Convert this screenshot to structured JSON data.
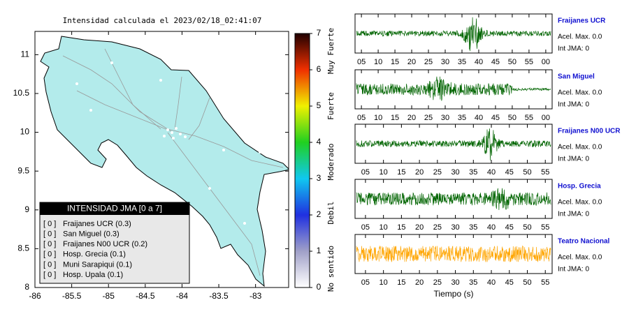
{
  "chart_data": [
    {
      "type": "map",
      "title": "Intensidad calculada el 2023/02/18_02:41:07",
      "fill": "#b3ebeb",
      "xlim": [
        -86,
        -82.55
      ],
      "ylim": [
        8,
        11.3
      ],
      "xticks": [
        -86,
        -85.5,
        -85,
        -84.5,
        -84,
        -83.5,
        -83
      ],
      "yticks": [
        8,
        8.5,
        9,
        9.5,
        10,
        10.5,
        11
      ],
      "colorbar": {
        "ylim": [
          0,
          7
        ],
        "yticks": [
          0,
          1,
          2,
          3,
          4,
          5,
          6,
          7
        ],
        "colors": [
          "#ffffff",
          "#a0a0c8",
          "#2030e0",
          "#10c8f0",
          "#20d020",
          "#f0f000",
          "#f03000",
          "#200000"
        ],
        "labels": [
          "No sentido",
          "Debil",
          "Moderado",
          "Fuerte",
          "Muy Fuerte"
        ]
      },
      "legend": {
        "title": "INTENSIDAD JMA [0 a 7]",
        "entries": [
          {
            "level": "[ 0 ]",
            "label": "Fraijanes UCR (0.3)"
          },
          {
            "level": "[ 0 ]",
            "label": "San Miguel (0.3)"
          },
          {
            "level": "[ 0 ]",
            "label": "Fraijanes N00 UCR (0.2)"
          },
          {
            "level": "[ 0 ]",
            "label": "Hosp. Grecia (0.1)"
          },
          {
            "level": "[ 0 ]",
            "label": "Muni Sarapiqui (0.1)"
          },
          {
            "level": "[ 0 ]",
            "label": "Hosp. Upala (0.1)"
          }
        ]
      }
    },
    {
      "type": "waveform",
      "station": "Fraijanes UCR",
      "acel": "Acel. Max. 0.0",
      "int": "Int JMA: 0",
      "color": "#006400",
      "xlim": [
        3.1,
        61.9
      ],
      "xticks": [
        {
          "value": 5,
          "label": "05"
        },
        10,
        15,
        20,
        25,
        30,
        35,
        40,
        45,
        50,
        55,
        {
          "value": 60,
          "label": "00"
        }
      ]
    },
    {
      "type": "waveform",
      "station": "San Miguel",
      "acel": "Acel. Max. 0.0",
      "int": "Int JMA: 0",
      "color": "#006400",
      "xlim": [
        3.1,
        61.9
      ],
      "xticks": [
        {
          "value": 5,
          "label": "05"
        },
        10,
        15,
        20,
        25,
        30,
        35,
        40,
        45,
        50,
        55,
        {
          "value": 60,
          "label": "00"
        }
      ]
    },
    {
      "type": "waveform",
      "station": "Fraijanes N00 UCR",
      "acel": "Acel. Max. 0.0",
      "int": "Int JMA: 0",
      "color": "#006400",
      "xlim": [
        2.1,
        56.9
      ],
      "xticks": [
        {
          "value": 5,
          "label": "05"
        },
        10,
        15,
        20,
        25,
        30,
        35,
        40,
        45,
        50,
        55
      ]
    },
    {
      "type": "waveform",
      "station": "Hosp. Grecia",
      "acel": "Acel. Max. 0.0",
      "int": "Int JMA: 0",
      "color": "#006400",
      "xlim": [
        2.1,
        56.9
      ],
      "xticks": [
        {
          "value": 5,
          "label": "05"
        },
        10,
        15,
        20,
        25,
        30,
        35,
        40,
        45,
        50,
        55
      ]
    },
    {
      "type": "waveform",
      "station": "Teatro Nacional",
      "acel": "Acel. Max. 0.0",
      "int": "Int JMA: 0",
      "color": "#ffa500",
      "xlim": [
        2.1,
        56.9
      ],
      "xticks": [
        {
          "value": 5,
          "label": "05"
        },
        10,
        15,
        20,
        25,
        30,
        35,
        40,
        45,
        50,
        55
      ],
      "xlabel": "Tiempo (s)"
    }
  ]
}
